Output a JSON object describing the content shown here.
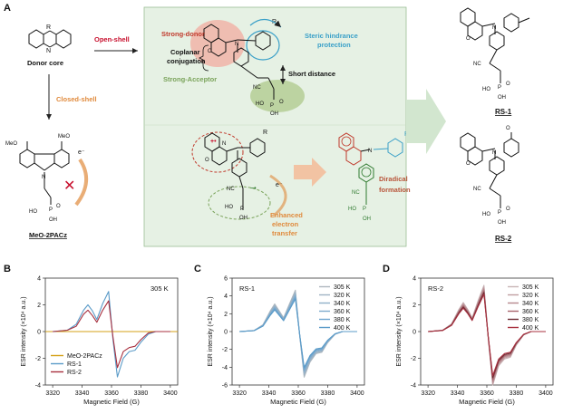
{
  "panel_a": {
    "letter": "A",
    "donor_core": "Donor core",
    "open_shell": "Open-shell",
    "closed_shell": "Closed-shell",
    "meo_label": "MeO-2PACz",
    "strong_donor": "Strong-donor",
    "coplanar_line1": "Coplanar",
    "coplanar_line2": "conjugation",
    "strong_acceptor": "Strong-Acceptor",
    "short_distance": "Short distance",
    "steric_line1": "Steric hindrance",
    "steric_line2": "protection",
    "enhanced_line1": "Enhanced",
    "enhanced_line2": "electron",
    "enhanced_line3": "transfer",
    "diradical_line1": "Diradical",
    "diradical_line2": "formation",
    "rs1_label": "RS-1",
    "rs2_label": "RS-2",
    "r_label": "R",
    "electron": "e⁻",
    "nc": "NC",
    "ho": "HO",
    "oh": "OH",
    "o": "O",
    "p": "P",
    "n": "N",
    "meo": "MeO",
    "plus_radical": "+•",
    "minus_radical": "−•"
  },
  "colors": {
    "meo": "#d4a017",
    "rs1": "#5b9bc8",
    "rs2": "#a8303f",
    "donor_red": "#c0392b",
    "acceptor_green": "#7aa35a",
    "steric_blue": "#3aa0c8",
    "open_shell_red": "#c8102e",
    "closed_shell_orange": "#e08a3c",
    "diradical_red": "#b8553a"
  },
  "chart_data": [
    {
      "type": "line",
      "panel": "B",
      "annotation": "305 K",
      "xlabel": "Magnetic Field (G)",
      "ylabel": "ESR intensity (×10⁴ a.u.)",
      "xlim": [
        3315,
        3405
      ],
      "ylim": [
        -4,
        4
      ],
      "xticks": [
        3320,
        3340,
        3360,
        3380,
        3400
      ],
      "yticks": [
        -4,
        -2,
        0,
        2,
        4
      ],
      "legend": "bottom-left",
      "series": [
        {
          "name": "MeO-2PACz",
          "color": "#d4a017",
          "x": [
            3315,
            3405
          ],
          "y": [
            0,
            0
          ]
        },
        {
          "name": "RS-1",
          "color": "#5b9bc8",
          "x": [
            3320,
            3330,
            3336,
            3341,
            3344,
            3347,
            3350,
            3354,
            3358,
            3361,
            3364,
            3368,
            3372,
            3376,
            3380,
            3385,
            3390,
            3400
          ],
          "y": [
            0,
            0.1,
            0.55,
            1.6,
            2.0,
            1.55,
            0.9,
            2.1,
            3.0,
            -0.6,
            -3.4,
            -2.0,
            -1.5,
            -1.4,
            -0.8,
            -0.2,
            0,
            0
          ]
        },
        {
          "name": "RS-2",
          "color": "#a8303f",
          "x": [
            3320,
            3330,
            3336,
            3341,
            3344,
            3347,
            3350,
            3354,
            3358,
            3361,
            3364,
            3368,
            3372,
            3376,
            3380,
            3385,
            3390,
            3400
          ],
          "y": [
            0,
            0.1,
            0.4,
            1.3,
            1.6,
            1.2,
            0.7,
            1.6,
            2.3,
            -0.4,
            -2.7,
            -1.5,
            -1.2,
            -1.1,
            -0.6,
            -0.1,
            0,
            0
          ]
        }
      ]
    },
    {
      "type": "line",
      "panel": "C",
      "annotation": "RS-1",
      "xlabel": "Magnetic Field (G)",
      "ylabel": "ESR intensity (×10⁴ a.u.)",
      "xlim": [
        3315,
        3405
      ],
      "ylim": [
        -6,
        6
      ],
      "xticks": [
        3320,
        3340,
        3360,
        3380,
        3400
      ],
      "yticks": [
        -6,
        -4,
        -2,
        0,
        2,
        4,
        6
      ],
      "legend": "top-right",
      "x": [
        3320,
        3330,
        3336,
        3341,
        3344,
        3347,
        3350,
        3354,
        3358,
        3361,
        3364,
        3368,
        3372,
        3376,
        3380,
        3385,
        3390,
        3400
      ],
      "shape": [
        0,
        0.08,
        0.5,
        1.5,
        2.0,
        1.5,
        1.0,
        2.0,
        3.0,
        -0.3,
        -3.3,
        -2.2,
        -1.6,
        -1.5,
        -0.8,
        -0.2,
        0,
        0
      ],
      "series": [
        {
          "name": "305 K",
          "color": "#aeb7be",
          "scale": 1.55
        },
        {
          "name": "320 K",
          "color": "#9fb3c4",
          "scale": 1.48
        },
        {
          "name": "340 K",
          "color": "#90b0c9",
          "scale": 1.41
        },
        {
          "name": "360 K",
          "color": "#7fabcd",
          "scale": 1.34
        },
        {
          "name": "380 K",
          "color": "#6ea5cf",
          "scale": 1.28
        },
        {
          "name": "400 K",
          "color": "#5b9bc8",
          "scale": 1.22
        }
      ]
    },
    {
      "type": "line",
      "panel": "D",
      "annotation": "RS-2",
      "xlabel": "Magnetic Field (G)",
      "ylabel": "ESR intensity (×10⁴ a.u.)",
      "xlim": [
        3315,
        3405
      ],
      "ylim": [
        -4,
        4
      ],
      "xticks": [
        3320,
        3340,
        3360,
        3380,
        3400
      ],
      "yticks": [
        -4,
        -2,
        0,
        2,
        4
      ],
      "legend": "top-right",
      "x": [
        3320,
        3330,
        3336,
        3341,
        3344,
        3347,
        3350,
        3354,
        3358,
        3361,
        3364,
        3368,
        3372,
        3376,
        3380,
        3385,
        3390,
        3400
      ],
      "shape": [
        0,
        0.08,
        0.45,
        1.3,
        1.7,
        1.3,
        0.8,
        1.8,
        2.7,
        -0.4,
        -3.2,
        -2.0,
        -1.6,
        -1.5,
        -0.8,
        -0.2,
        0,
        0
      ],
      "series": [
        {
          "name": "305 K",
          "color": "#c9b4b6",
          "scale": 1.28
        },
        {
          "name": "320 K",
          "color": "#c09ea2",
          "scale": 1.23
        },
        {
          "name": "340 K",
          "color": "#b7888e",
          "scale": 1.18
        },
        {
          "name": "360 K",
          "color": "#a8666e",
          "scale": 1.13
        },
        {
          "name": "380 K",
          "color": "#6b2c33",
          "scale": 1.08
        },
        {
          "name": "400 K",
          "color": "#a8303f",
          "scale": 1.03
        }
      ]
    }
  ]
}
